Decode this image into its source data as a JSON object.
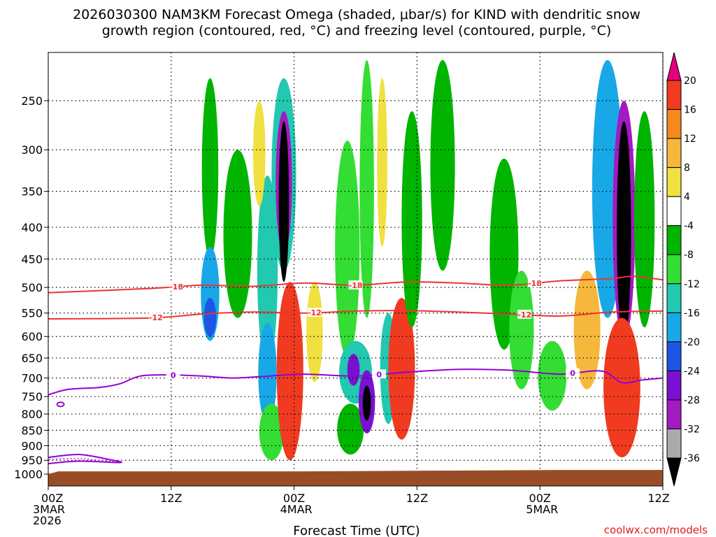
{
  "chart_data": {
    "type": "heatmap",
    "title": {
      "line1": "2026030300 NAM3KM Forecast Omega (shaded, μbar/s) for KIND with dendritic snow",
      "line2": "growth region (contoured, red, °C) and freezing level (contoured, purple, °C)"
    },
    "xlabel": "Forecast Time (UTC)",
    "x_range_hours": [
      0,
      60
    ],
    "x_ticks": [
      {
        "hour": 0,
        "lines": [
          "00Z",
          "3MAR",
          "2026"
        ]
      },
      {
        "hour": 12,
        "lines": [
          "12Z"
        ]
      },
      {
        "hour": 24,
        "lines": [
          "00Z",
          "4MAR"
        ]
      },
      {
        "hour": 36,
        "lines": [
          "12Z"
        ]
      },
      {
        "hour": 48,
        "lines": [
          "00Z",
          "5MAR"
        ]
      },
      {
        "hour": 60,
        "lines": [
          "12Z"
        ]
      }
    ],
    "y_axis": {
      "scale": "log-pressure",
      "range_hPa": [
        1050,
        210
      ],
      "ticks": [
        250,
        300,
        350,
        400,
        450,
        500,
        550,
        600,
        650,
        700,
        750,
        800,
        850,
        900,
        950,
        1000
      ]
    },
    "colorbar": {
      "labels": [
        "20",
        "16",
        "12",
        "8",
        "4",
        "-4",
        "-8",
        "-12",
        "-16",
        "-20",
        "-24",
        "-28",
        "-32",
        "-36"
      ],
      "colors": [
        "#e3007e",
        "#f03b20",
        "#f4891c",
        "#f5b83c",
        "#f0e040",
        "#ffffff",
        "#00b400",
        "#33dd33",
        "#22c8b0",
        "#18a8e8",
        "#1f55e6",
        "#7a10d0",
        "#a21ac2",
        "#aaaaaa",
        "#000000"
      ]
    },
    "omega_cells": [
      {
        "hour": 15.8,
        "p": 340,
        "dt": 0.8,
        "dp": 110,
        "value": -6
      },
      {
        "hour": 15.8,
        "p": 520,
        "dt": 0.9,
        "dp": 90,
        "value": -16
      },
      {
        "hour": 15.8,
        "p": 560,
        "dt": 0.6,
        "dp": 40,
        "value": -22
      },
      {
        "hour": 18.5,
        "p": 430,
        "dt": 1.4,
        "dp": 130,
        "value": -6
      },
      {
        "hour": 21.4,
        "p": 500,
        "dt": 1.0,
        "dp": 170,
        "value": -14
      },
      {
        "hour": 21.4,
        "p": 700,
        "dt": 0.9,
        "dp": 130,
        "value": -18
      },
      {
        "hour": 21.8,
        "p": 860,
        "dt": 1.2,
        "dp": 90,
        "value": -8
      },
      {
        "hour": 23.0,
        "p": 350,
        "dt": 1.2,
        "dp": 120,
        "value": -12
      },
      {
        "hour": 23.0,
        "p": 350,
        "dt": 0.8,
        "dp": 90,
        "value": -28
      },
      {
        "hour": 23.0,
        "p": 380,
        "dt": 0.5,
        "dp": 110,
        "value": -40
      },
      {
        "hour": 23.6,
        "p": 720,
        "dt": 1.3,
        "dp": 230,
        "value": 18
      },
      {
        "hour": 20.6,
        "p": 310,
        "dt": 0.6,
        "dp": 60,
        "value": 6
      },
      {
        "hour": 26.0,
        "p": 600,
        "dt": 0.8,
        "dp": 110,
        "value": 4
      },
      {
        "hour": 29.2,
        "p": 470,
        "dt": 1.2,
        "dp": 180,
        "value": -8
      },
      {
        "hour": 30.0,
        "p": 690,
        "dt": 1.6,
        "dp": 80,
        "value": -14
      },
      {
        "hour": 29.8,
        "p": 680,
        "dt": 0.6,
        "dp": 40,
        "value": -26
      },
      {
        "hour": 29.5,
        "p": 850,
        "dt": 1.3,
        "dp": 80,
        "value": -6
      },
      {
        "hour": 31.1,
        "p": 380,
        "dt": 0.7,
        "dp": 180,
        "value": -10
      },
      {
        "hour": 31.1,
        "p": 770,
        "dt": 0.8,
        "dp": 90,
        "value": -24
      },
      {
        "hour": 31.1,
        "p": 770,
        "dt": 0.4,
        "dp": 50,
        "value": -40
      },
      {
        "hour": 32.6,
        "p": 330,
        "dt": 0.5,
        "dp": 100,
        "value": 4
      },
      {
        "hour": 33.2,
        "p": 690,
        "dt": 0.8,
        "dp": 140,
        "value": -14
      },
      {
        "hour": 34.5,
        "p": 700,
        "dt": 1.3,
        "dp": 180,
        "value": 18
      },
      {
        "hour": 35.5,
        "p": 420,
        "dt": 1.0,
        "dp": 160,
        "value": -6
      },
      {
        "hour": 38.5,
        "p": 330,
        "dt": 1.2,
        "dp": 140,
        "value": -6
      },
      {
        "hour": 44.5,
        "p": 470,
        "dt": 1.4,
        "dp": 160,
        "value": -6
      },
      {
        "hour": 46.2,
        "p": 600,
        "dt": 1.2,
        "dp": 130,
        "value": -8
      },
      {
        "hour": 49.2,
        "p": 700,
        "dt": 1.4,
        "dp": 90,
        "value": -10
      },
      {
        "hour": 52.6,
        "p": 600,
        "dt": 1.3,
        "dp": 130,
        "value": 8
      },
      {
        "hour": 54.6,
        "p": 370,
        "dt": 1.5,
        "dp": 190,
        "value": -16
      },
      {
        "hour": 56.2,
        "p": 430,
        "dt": 1.1,
        "dp": 180,
        "value": -30
      },
      {
        "hour": 56.2,
        "p": 440,
        "dt": 0.7,
        "dp": 170,
        "value": -40
      },
      {
        "hour": 56.0,
        "p": 750,
        "dt": 1.8,
        "dp": 190,
        "value": 18
      },
      {
        "hour": 58.2,
        "p": 420,
        "dt": 1.0,
        "dp": 160,
        "value": -6
      }
    ],
    "contours": [
      {
        "name": "-18C isotherm",
        "label": "-18",
        "color": "#ee3333",
        "hours": [
          0,
          10,
          15,
          20,
          25,
          30,
          35,
          40,
          45,
          50,
          55,
          57,
          60
        ],
        "p": [
          510,
          502,
          496,
          498,
          492,
          496,
          490,
          492,
          496,
          488,
          484,
          480,
          486
        ]
      },
      {
        "name": "-12C isotherm",
        "label": "-12",
        "color": "#ee3333",
        "hours": [
          0,
          10,
          15,
          20,
          25,
          30,
          35,
          40,
          45,
          50,
          55,
          60
        ],
        "p": [
          562,
          560,
          552,
          548,
          550,
          546,
          545,
          548,
          552,
          556,
          548,
          546
        ]
      },
      {
        "name": "0C freezing level",
        "label": "0",
        "color": "#9400d3",
        "hours": [
          0,
          2,
          5,
          7,
          9,
          12,
          15,
          18,
          21,
          25,
          30,
          35,
          40,
          45,
          50,
          54,
          56,
          58,
          60
        ],
        "p": [
          745,
          730,
          725,
          715,
          695,
          692,
          695,
          700,
          696,
          690,
          695,
          685,
          678,
          680,
          690,
          682,
          712,
          705,
          700
        ]
      }
    ],
    "low_contour_label": "0"
  },
  "branding": {
    "credit": "coolwx.com/models"
  }
}
